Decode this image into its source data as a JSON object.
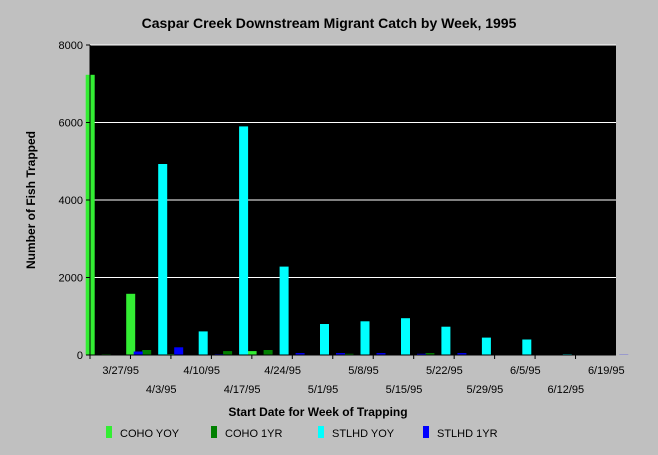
{
  "chart_data": {
    "type": "bar",
    "title": "Caspar Creek Downstream Migrant Catch by Week, 1995",
    "xlabel": "Start Date for Week of Trapping",
    "ylabel": "Number of Fish Trapped",
    "ylim": [
      0,
      8000
    ],
    "yticks": [
      0,
      2000,
      4000,
      6000,
      8000
    ],
    "grid": true,
    "legend_position": "bottom",
    "categories": [
      "3/27/95",
      "4/3/95",
      "4/10/95",
      "4/17/95",
      "4/24/95",
      "5/1/95",
      "5/8/95",
      "5/15/95",
      "5/22/95",
      "5/29/95",
      "6/5/95",
      "6/12/95",
      "6/19/95"
    ],
    "series": [
      {
        "name": "COHO YOY",
        "color": "#33ee33",
        "values": [
          7230,
          1580,
          20,
          10,
          100,
          10,
          10,
          10,
          10,
          5,
          5,
          5,
          0
        ]
      },
      {
        "name": "COHO 1YR",
        "color": "#008000",
        "values": [
          20,
          130,
          10,
          100,
          130,
          10,
          30,
          10,
          50,
          10,
          10,
          5,
          0
        ]
      },
      {
        "name": "STLHD YOY",
        "color": "#00ffff",
        "values": [
          0,
          4930,
          610,
          5900,
          2280,
          800,
          870,
          950,
          730,
          450,
          400,
          20,
          10
        ]
      },
      {
        "name": "STLHD 1YR",
        "color": "#0000ff",
        "values": [
          90,
          200,
          20,
          10,
          50,
          50,
          50,
          30,
          50,
          10,
          10,
          10,
          5
        ]
      }
    ]
  }
}
